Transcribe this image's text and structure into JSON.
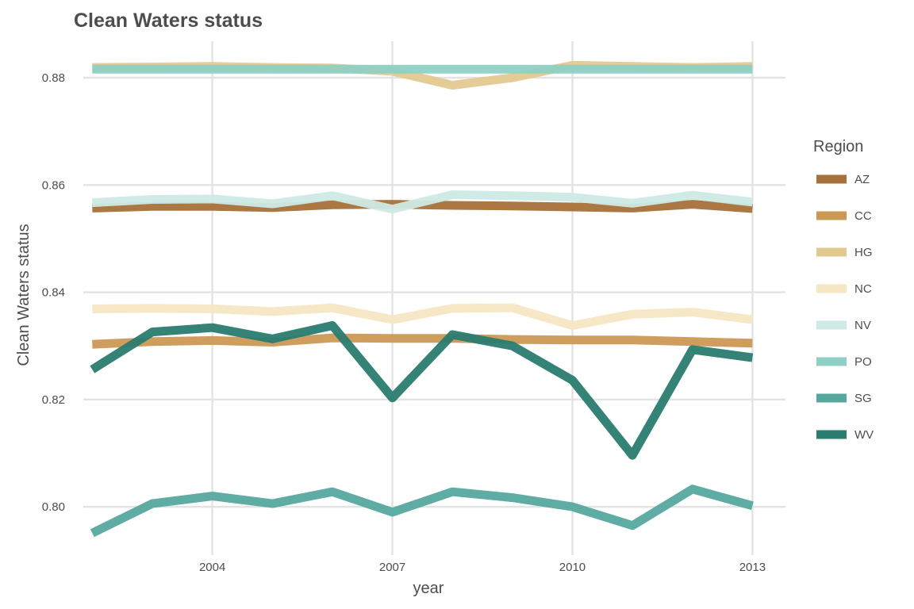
{
  "chart_data": {
    "type": "line",
    "title": "Clean Waters status",
    "xlabel": "year",
    "ylabel": "Clean Waters status",
    "xlim": [
      2001.85,
      2013.55
    ],
    "ylim": [
      0.791,
      0.8868
    ],
    "xticks": [
      2004,
      2007,
      2010,
      2013
    ],
    "yticks": [
      0.8,
      0.82,
      0.84,
      0.86,
      0.88
    ],
    "ytick_labels": [
      "0.80",
      "0.82",
      "0.84",
      "0.86",
      "0.88"
    ],
    "grid": true,
    "legend": {
      "title": "Region",
      "placement": "right"
    },
    "x": [
      2002,
      2003,
      2004,
      2005,
      2006,
      2007,
      2008,
      2009,
      2010,
      2011,
      2012,
      2013
    ],
    "series": [
      {
        "name": "AZ",
        "color": "#a6713a",
        "values": [
          0.8557,
          0.856,
          0.856,
          0.8558,
          0.8563,
          0.8564,
          0.8562,
          0.8561,
          0.8559,
          0.8557,
          0.8564,
          0.8556
        ]
      },
      {
        "name": "CC",
        "color": "#cc9955",
        "values": [
          0.8303,
          0.8308,
          0.831,
          0.8307,
          0.8315,
          0.8314,
          0.8314,
          0.8312,
          0.8311,
          0.8311,
          0.8308,
          0.8305
        ]
      },
      {
        "name": "HG",
        "color": "#e2c98f",
        "values": [
          0.8819,
          0.882,
          0.8821,
          0.8819,
          0.8818,
          0.8812,
          0.8786,
          0.88,
          0.8823,
          0.8821,
          0.8819,
          0.8821
        ]
      },
      {
        "name": "NC",
        "color": "#f5e7c3",
        "values": [
          0.8369,
          0.837,
          0.8369,
          0.8364,
          0.8371,
          0.8349,
          0.837,
          0.8371,
          0.8338,
          0.8359,
          0.8363,
          0.8349
        ]
      },
      {
        "name": "NV",
        "color": "#cdeae4",
        "values": [
          0.8567,
          0.8573,
          0.8574,
          0.8565,
          0.858,
          0.8555,
          0.8582,
          0.858,
          0.8577,
          0.8566,
          0.8581,
          0.8568
        ]
      },
      {
        "name": "PO",
        "color": "#8fd0c4",
        "values": [
          0.8816,
          0.8816,
          0.8816,
          0.8816,
          0.8816,
          0.8816,
          0.8816,
          0.8816,
          0.8816,
          0.8816,
          0.8816,
          0.8816
        ]
      },
      {
        "name": "SG",
        "color": "#55a89e",
        "values": [
          0.7951,
          0.8006,
          0.802,
          0.8006,
          0.8028,
          0.799,
          0.8028,
          0.8017,
          0.8,
          0.7965,
          0.8033,
          0.8002
        ]
      },
      {
        "name": "WV",
        "color": "#2a7b70",
        "values": [
          0.8256,
          0.8326,
          0.8334,
          0.8313,
          0.8338,
          0.8203,
          0.8321,
          0.83,
          0.8236,
          0.8096,
          0.8293,
          0.8278
        ]
      }
    ]
  }
}
